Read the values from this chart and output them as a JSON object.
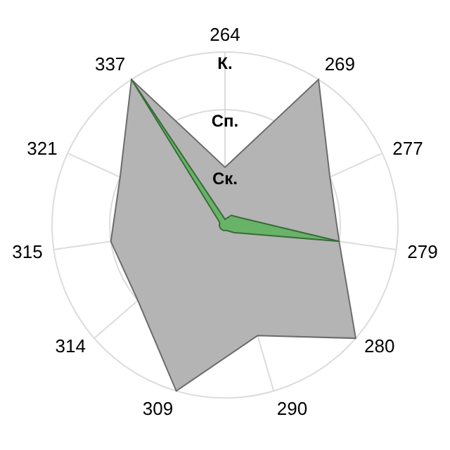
{
  "chart_data": {
    "type": "radar",
    "categories": [
      "264",
      "269",
      "277",
      "279",
      "280",
      "290",
      "309",
      "314",
      "315",
      "321",
      "337"
    ],
    "series": [
      {
        "color": "#b4b4b4",
        "values": [
          1,
          3,
          2,
          2,
          3,
          2,
          3,
          2,
          2,
          2,
          3
        ]
      },
      {
        "color": "#5fb35f",
        "values": [
          0.1,
          0.2,
          0.3,
          2,
          0.2,
          0.1,
          0.1,
          0.1,
          0.1,
          0.1,
          3
        ]
      }
    ],
    "ylim": [
      0,
      3
    ],
    "yticks": [
      {
        "value": 1,
        "label": "Ск."
      },
      {
        "value": 2,
        "label": "Сп."
      },
      {
        "value": 3,
        "label": "К."
      }
    ],
    "grid": true
  }
}
